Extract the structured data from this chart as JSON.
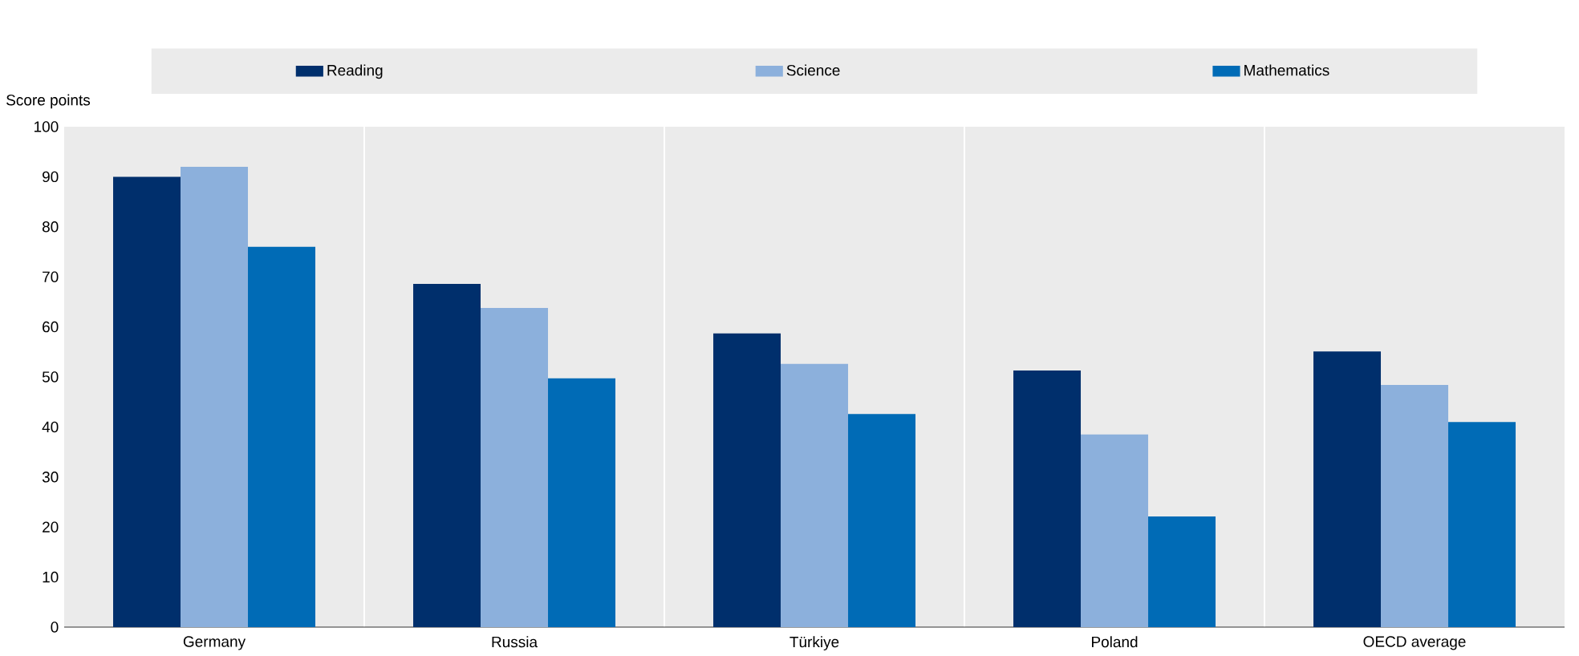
{
  "chart_data": {
    "type": "bar",
    "ylabel": "Score points",
    "categories": [
      "Germany",
      "Russia",
      "Türkiye",
      "Poland",
      "OECD average"
    ],
    "series": [
      {
        "name": "Reading",
        "color": "#002f6c",
        "values": [
          90,
          68.6,
          58.7,
          51.3,
          55.1
        ]
      },
      {
        "name": "Science",
        "color": "#8cb0dc",
        "values": [
          92,
          63.8,
          52.6,
          38.5,
          48.4
        ]
      },
      {
        "name": "Mathematics",
        "color": "#006bb6",
        "values": [
          76,
          49.7,
          42.6,
          22.1,
          41
        ]
      }
    ],
    "ylim": [
      0,
      100
    ],
    "yticks": [
      0,
      10,
      20,
      30,
      40,
      50,
      60,
      70,
      80,
      90,
      100
    ],
    "grid": false,
    "legend": "top"
  }
}
